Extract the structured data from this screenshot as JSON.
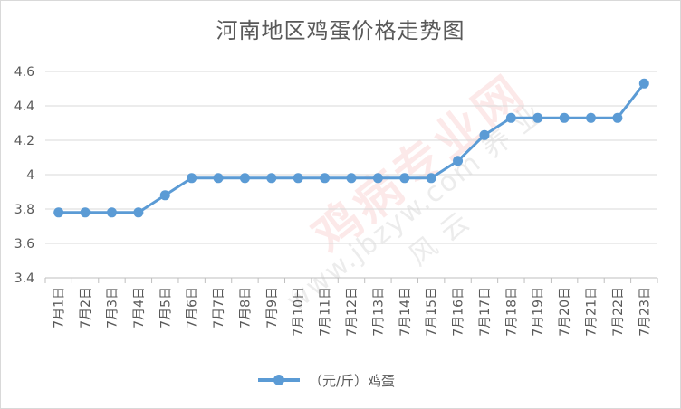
{
  "chart_data": {
    "type": "line",
    "title": "河南地区鸡蛋价格走势图",
    "categories": [
      "7月1日",
      "7月2日",
      "7月3日",
      "7月4日",
      "7月5日",
      "7月6日",
      "7月7日",
      "7月8日",
      "7月9日",
      "7月10日",
      "7月11日",
      "7月12日",
      "7月13日",
      "7月14日",
      "7月15日",
      "7月16日",
      "7月17日",
      "7月18日",
      "7月19日",
      "7月20日",
      "7月21日",
      "7月22日",
      "7月23日"
    ],
    "series": [
      {
        "name": "（元/斤）鸡蛋",
        "color": "#5b9bd5",
        "values": [
          3.78,
          3.78,
          3.78,
          3.78,
          3.88,
          3.98,
          3.98,
          3.98,
          3.98,
          3.98,
          3.98,
          3.98,
          3.98,
          3.98,
          3.98,
          4.08,
          4.23,
          4.33,
          4.33,
          4.33,
          4.33,
          4.33,
          4.53
        ]
      }
    ],
    "ylim": [
      3.4,
      4.6
    ],
    "yticks": [
      "4.6",
      "4.4",
      "4.2",
      "4",
      "3.8",
      "3.6",
      "3.4"
    ],
    "ytick_values": [
      4.6,
      4.4,
      4.2,
      4.0,
      3.8,
      3.6,
      3.4
    ],
    "grid": true,
    "legend_position": "bottom",
    "xlabel": "",
    "ylabel": ""
  },
  "watermark": {
    "main": "鸡病专业网",
    "sub": "www.jbzyw.com 养 业 风 云"
  }
}
